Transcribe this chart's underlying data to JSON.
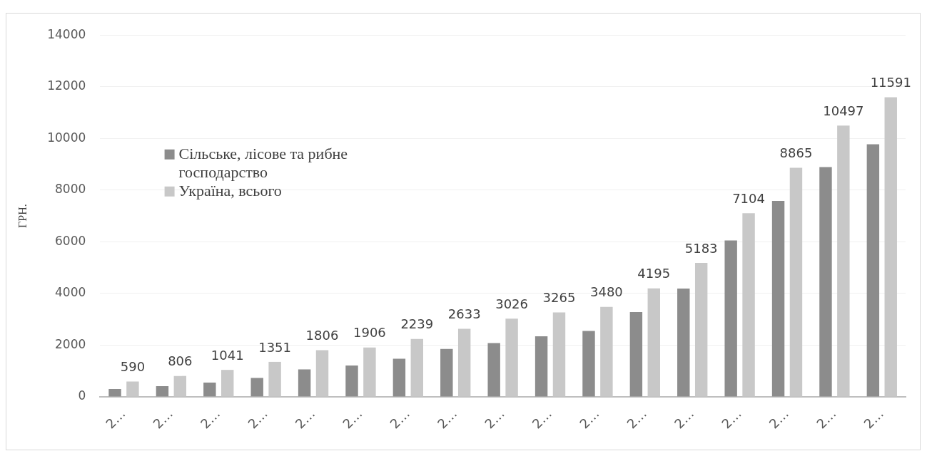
{
  "chart_data": {
    "type": "bar",
    "ylabel": "ГРН.",
    "categories": [
      "2…",
      "2…",
      "2…",
      "2…",
      "2…",
      "2…",
      "2…",
      "2…",
      "2…",
      "2…",
      "2…",
      "2…",
      "2…",
      "2…",
      "2…",
      "2…",
      "2…"
    ],
    "series": [
      {
        "name": "Сільське, лісове та рибне господарство",
        "color": "#8c8c8c",
        "values": [
          300,
          410,
          550,
          730,
          1060,
          1210,
          1470,
          1850,
          2080,
          2340,
          2550,
          3280,
          4190,
          6050,
          7580,
          8890,
          9770
        ]
      },
      {
        "name": "Україна, всього",
        "color": "#c8c8c8",
        "values": [
          590,
          806,
          1041,
          1351,
          1806,
          1906,
          2239,
          2633,
          3026,
          3265,
          3480,
          4195,
          5183,
          7104,
          8865,
          10497,
          11591
        ],
        "value_labels": [
          "590",
          "806",
          "1041",
          "1351",
          "1806",
          "1906",
          "2239",
          "2633",
          "3026",
          "3265",
          "3480",
          "4195",
          "5183",
          "7104",
          "8865",
          "10497",
          "11591"
        ]
      }
    ],
    "ylim": [
      0,
      14000
    ],
    "yticks": [
      0,
      2000,
      4000,
      6000,
      8000,
      10000,
      12000,
      14000
    ],
    "grid": "y",
    "legend": "left"
  }
}
